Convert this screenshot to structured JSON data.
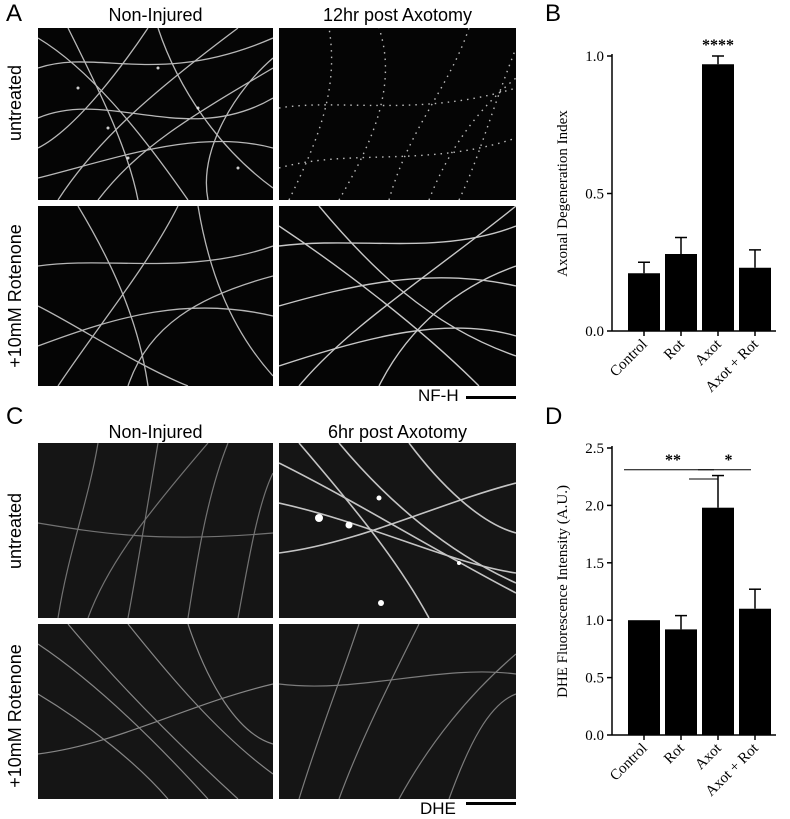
{
  "panels": {
    "A": {
      "letter": "A",
      "columns": [
        "Non-Injured",
        "12hr post Axotomy"
      ],
      "rows": [
        "untreated",
        "+10mM Rotenone"
      ],
      "stain": "NF-H"
    },
    "B": {
      "letter": "B"
    },
    "C": {
      "letter": "C",
      "columns": [
        "Non-Injured",
        "6hr post Axotomy"
      ],
      "rows": [
        "untreated",
        "+10mM Rotenone"
      ],
      "stain": "DHE"
    },
    "D": {
      "letter": "D"
    }
  },
  "chart_data": [
    {
      "panel": "B",
      "type": "bar",
      "categories": [
        "Control",
        "Rot",
        "Axot",
        "Axot + Rot"
      ],
      "values": [
        0.21,
        0.28,
        0.97,
        0.23
      ],
      "errors": [
        0.04,
        0.06,
        0.03,
        0.065
      ],
      "ylabel": "Axonal Degeneration Index",
      "ylim": [
        0,
        1.0
      ],
      "yticks": [
        "0.0",
        "0.5",
        "1.0"
      ],
      "annotations": [
        {
          "category": "Axot",
          "text": "****"
        }
      ],
      "bar_color": "#000000"
    },
    {
      "panel": "D",
      "type": "bar",
      "categories": [
        "Control",
        "Rot",
        "Axot",
        "Axot + Rot"
      ],
      "values": [
        1.0,
        0.92,
        1.98,
        1.1
      ],
      "errors": [
        0.0,
        0.12,
        0.28,
        0.17
      ],
      "ylabel": "DHE Fluorescence Intensity (A.U.)",
      "ylim": [
        0,
        2.5
      ],
      "yticks": [
        "0.0",
        "0.5",
        "1.0",
        "1.5",
        "2.0",
        "2.5"
      ],
      "comparisons": [
        {
          "from": "Control",
          "to": "Axot",
          "text": "**"
        },
        {
          "from": "Axot",
          "to": "Axot + Rot",
          "text": "*"
        }
      ],
      "bar_color": "#000000"
    }
  ]
}
